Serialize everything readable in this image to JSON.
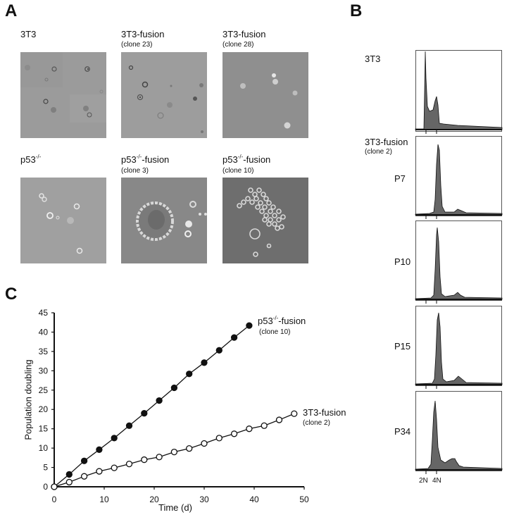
{
  "panel_a": {
    "letter": "A",
    "images": [
      {
        "title": "3T3",
        "sub": "",
        "sup": "",
        "tone": "#9a9a9a",
        "style": "plain"
      },
      {
        "title": "3T3-fusion",
        "sub": "(clone 23)",
        "sup": "",
        "tone": "#9c9c9c",
        "style": "plain"
      },
      {
        "title": "3T3-fusion",
        "sub": "(clone 28)",
        "sup": "",
        "tone": "#8f8f8f",
        "style": "bright"
      },
      {
        "title_pre": "p53",
        "sup": "-/-",
        "title_post": "",
        "sub": "",
        "tone": "#9e9e9e",
        "style": "bright"
      },
      {
        "title_pre": "p53",
        "sup": "-/-",
        "title_post": "-fusion",
        "sub": "(clone 3)",
        "tone": "#888888",
        "style": "colony"
      },
      {
        "title_pre": "p53",
        "sup": "-/-",
        "title_post": "-fusion",
        "sub": "(clone 10)",
        "tone": "#6f6f6f",
        "style": "cluster"
      }
    ]
  },
  "panel_b": {
    "letter": "B",
    "group_title": "3T3-fusion",
    "group_sub": "(clone 2)",
    "histograms": [
      {
        "label": "3T3",
        "peak2N": 1.0,
        "peak4N": 0.28
      },
      {
        "label": "P7",
        "peak2N": 0.0,
        "peak4N": 1.0,
        "peak8N": 0.07
      },
      {
        "label": "P10",
        "peak2N": 0.0,
        "peak4N": 1.0,
        "peak8N": 0.09
      },
      {
        "label": "P15",
        "peak2N": 0.0,
        "peak4N": 1.0,
        "peak8N": 0.1
      },
      {
        "label": "P34",
        "peak2N": 0.0,
        "peak4N": 1.0,
        "peak8N": 0.33
      }
    ],
    "x_ticks": [
      "2N",
      "4N"
    ]
  },
  "panel_c": {
    "letter": "C"
  },
  "chart_data": {
    "type": "line",
    "title": "",
    "xlabel": "Time (d)",
    "ylabel": "Population doubling",
    "xlim": [
      0,
      50
    ],
    "ylim": [
      0,
      45
    ],
    "x_ticks": [
      0,
      10,
      20,
      30,
      40,
      50
    ],
    "y_ticks": [
      0,
      5,
      10,
      15,
      20,
      25,
      30,
      35,
      40,
      45
    ],
    "grid": false,
    "series": [
      {
        "name": "p53-/- -fusion (clone 10)",
        "label_main_pre": "p53",
        "label_sup": "-/-",
        "label_main_post": "-fusion",
        "label_sub": "(clone 10)",
        "marker": "filled-circle",
        "x": [
          0,
          3,
          6,
          9,
          12,
          15,
          18,
          21,
          24,
          27,
          30,
          33,
          36,
          39
        ],
        "y": [
          0,
          3.2,
          6.7,
          9.6,
          12.6,
          15.8,
          19.0,
          22.3,
          25.6,
          29.2,
          32.1,
          35.3,
          38.6,
          41.7
        ]
      },
      {
        "name": "3T3-fusion (clone 2)",
        "label_main_pre": "3T3-fusion",
        "label_sup": "",
        "label_main_post": "",
        "label_sub": "(clone 2)",
        "marker": "open-circle",
        "x": [
          0,
          3,
          6,
          9,
          12,
          15,
          18,
          21,
          24,
          27,
          30,
          33,
          36,
          39,
          42,
          45,
          48
        ],
        "y": [
          0,
          1.2,
          2.7,
          4.0,
          4.9,
          5.9,
          7.0,
          7.7,
          9.0,
          9.9,
          11.2,
          12.6,
          13.7,
          15.0,
          15.8,
          17.3,
          18.9
        ]
      }
    ]
  }
}
